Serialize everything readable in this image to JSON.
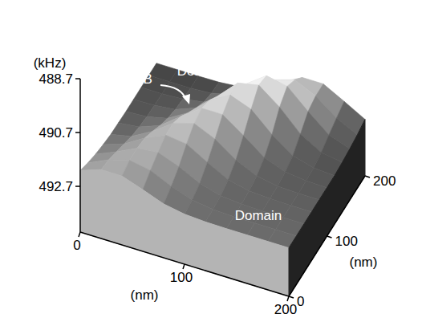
{
  "chart_data": {
    "type": "surface",
    "x": [
      0,
      20,
      40,
      60,
      80,
      100,
      120,
      140,
      160,
      180,
      200
    ],
    "y": [
      0,
      20,
      40,
      60,
      80,
      100,
      120,
      140,
      160,
      180,
      200
    ],
    "z": [
      [
        492.11,
        491.84,
        491.84,
        492.11,
        492.4,
        492.54,
        492.59,
        492.6,
        492.6,
        492.6,
        492.6
      ],
      [
        492.27,
        491.92,
        491.7,
        491.84,
        492.19,
        492.46,
        492.57,
        492.6,
        492.6,
        492.6,
        492.6
      ],
      [
        492.4,
        492.07,
        491.7,
        491.62,
        491.91,
        492.29,
        492.51,
        492.58,
        492.6,
        492.6,
        492.6
      ],
      [
        492.49,
        492.23,
        491.77,
        491.42,
        491.52,
        491.96,
        492.36,
        492.54,
        492.59,
        492.6,
        492.6
      ],
      [
        492.56,
        492.39,
        491.97,
        491.42,
        491.2,
        491.54,
        492.08,
        492.43,
        492.57,
        492.6,
        492.6
      ],
      [
        492.58,
        492.49,
        492.2,
        491.62,
        491.08,
        491.08,
        491.62,
        492.2,
        492.49,
        492.58,
        492.6
      ],
      [
        492.6,
        492.56,
        492.38,
        491.93,
        491.23,
        490.8,
        491.09,
        491.79,
        492.33,
        492.55,
        492.6
      ],
      [
        492.6,
        492.58,
        492.5,
        492.2,
        491.54,
        490.8,
        490.64,
        491.22,
        491.98,
        492.42,
        492.56
      ],
      [
        492.6,
        492.6,
        492.56,
        492.43,
        492.01,
        491.29,
        490.74,
        490.89,
        491.59,
        492.22,
        492.5
      ],
      [
        492.6,
        492.6,
        492.6,
        492.55,
        492.37,
        491.92,
        491.34,
        491.1,
        491.46,
        492.04,
        492.42
      ],
      [
        492.6,
        492.6,
        492.6,
        492.59,
        492.52,
        492.3,
        491.87,
        491.46,
        491.46,
        491.87,
        492.3
      ]
    ],
    "xlim": [
      0,
      200
    ],
    "ylim": [
      0,
      200
    ],
    "zlim": [
      494.4,
      488.7
    ],
    "xticks": [
      0,
      100,
      200
    ],
    "yticks": [
      0,
      100,
      200
    ],
    "zticks": [
      488.7,
      490.7,
      492.7
    ],
    "x_label": "(nm)",
    "y_label": "(nm)",
    "z_label": "(kHz)",
    "annotations": [
      "Domain",
      "DB",
      "Domain"
    ]
  }
}
